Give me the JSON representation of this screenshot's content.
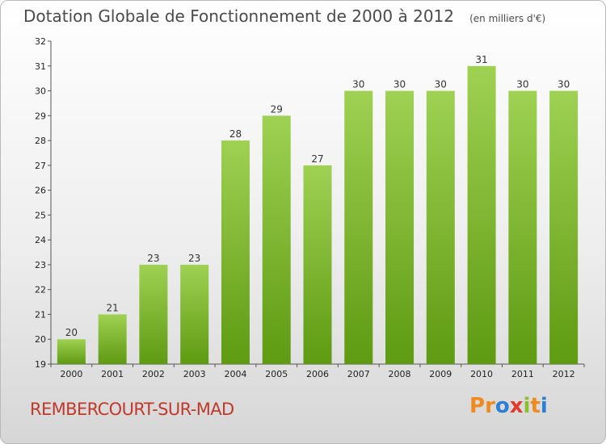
{
  "chart_data": {
    "type": "bar",
    "title": "Dotation Globale de Fonctionnement de 2000 à 2012",
    "subtitle": "(en milliers d'€)",
    "categories": [
      "2000",
      "2001",
      "2002",
      "2003",
      "2004",
      "2005",
      "2006",
      "2007",
      "2008",
      "2009",
      "2010",
      "2011",
      "2012"
    ],
    "values": [
      20,
      21,
      23,
      23,
      28,
      29,
      27,
      30,
      30,
      30,
      31,
      30,
      30
    ],
    "ylim": [
      19,
      32
    ],
    "yticks": [
      19,
      20,
      21,
      22,
      23,
      24,
      25,
      26,
      27,
      28,
      29,
      30,
      31,
      32
    ],
    "grid": false,
    "bar_color_top": "#9fd152",
    "bar_color_bottom": "#5e9a12"
  },
  "footer": {
    "commune": "REMBERCOURT-SUR-MAD",
    "brand_letters": [
      "P",
      "r",
      "o",
      "x",
      "i",
      "t",
      "i"
    ],
    "brand_colors": [
      "#f08a1c",
      "#f08a1c",
      "#2c7fd6",
      "#e23b2e",
      "#8cbf2a",
      "#f08a1c",
      "#2c7fd6"
    ]
  }
}
